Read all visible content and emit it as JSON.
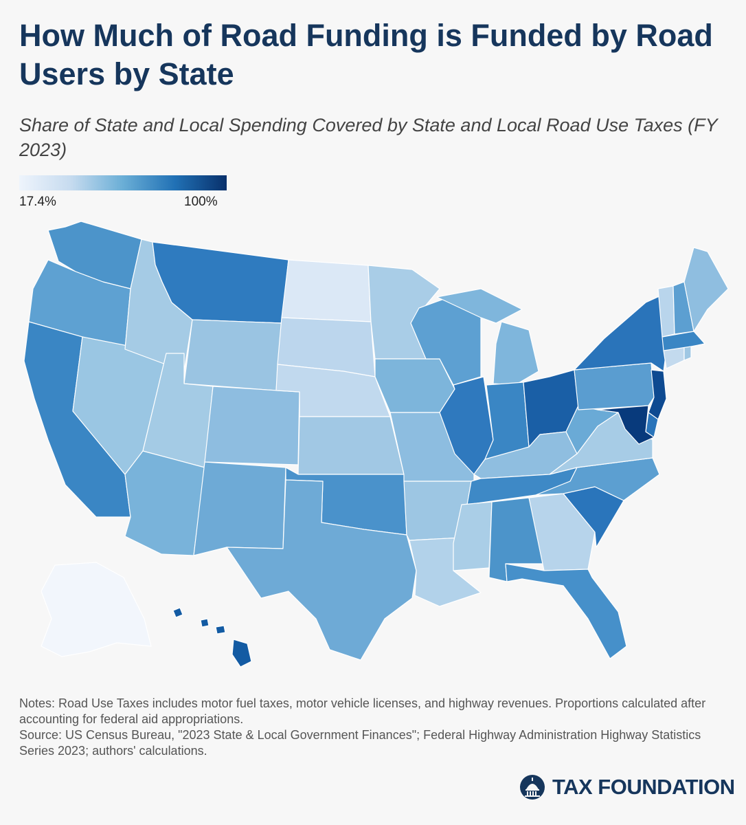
{
  "title": "How Much of Road Funding is Funded by Road Users by State",
  "subtitle": "Share of State and Local Spending Covered by State and Local Road Use Taxes (FY 2023)",
  "legend": {
    "min_label": "17.4%",
    "max_label": "100%",
    "colors": [
      "#eef4fc",
      "#c6dbef",
      "#6aaed6",
      "#2171b5",
      "#08306b"
    ]
  },
  "notes": [
    "Notes: Road Use Taxes includes motor fuel taxes, motor vehicle licenses, and highway revenues. Proportions calculated after accounting for federal aid appropriations.",
    "Source: US Census Bureau, \"2023 State & Local Government Finances\"; Federal Highway Administration Highway Statistics Series 2023; authors' calculations."
  ],
  "logo": {
    "text": "TAX FOUNDATION",
    "icon": "capitol-dome-icon"
  },
  "states": [
    {
      "id": "WA",
      "color": "#4c94ca"
    },
    {
      "id": "OR",
      "color": "#5ea1d2"
    },
    {
      "id": "CA",
      "color": "#3a86c4"
    },
    {
      "id": "NV",
      "color": "#9ac6e3"
    },
    {
      "id": "ID",
      "color": "#a5cbe5"
    },
    {
      "id": "MT",
      "color": "#2f7bbf"
    },
    {
      "id": "WY",
      "color": "#9ac4e2"
    },
    {
      "id": "UT",
      "color": "#a4cbe5"
    },
    {
      "id": "AZ",
      "color": "#79b3da"
    },
    {
      "id": "CO",
      "color": "#8ebde0"
    },
    {
      "id": "NM",
      "color": "#6eaad6"
    },
    {
      "id": "ND",
      "color": "#dbe8f6"
    },
    {
      "id": "SD",
      "color": "#bcd6ed"
    },
    {
      "id": "NE",
      "color": "#c1d9ee"
    },
    {
      "id": "KS",
      "color": "#a1c8e4"
    },
    {
      "id": "OK",
      "color": "#4a92cb"
    },
    {
      "id": "TX",
      "color": "#6eaad6"
    },
    {
      "id": "MN",
      "color": "#a9cde7"
    },
    {
      "id": "IA",
      "color": "#7db5db"
    },
    {
      "id": "MO",
      "color": "#8dbde0"
    },
    {
      "id": "AR",
      "color": "#9dc6e3"
    },
    {
      "id": "LA",
      "color": "#b2d2ea"
    },
    {
      "id": "WI",
      "color": "#5da0d2"
    },
    {
      "id": "IL",
      "color": "#2f79be"
    },
    {
      "id": "MI",
      "color": "#7fb6dc"
    },
    {
      "id": "IN",
      "color": "#3a86c4"
    },
    {
      "id": "OH",
      "color": "#1a5fa6"
    },
    {
      "id": "KY",
      "color": "#8fbee0"
    },
    {
      "id": "TN",
      "color": "#3e89c6"
    },
    {
      "id": "MS",
      "color": "#aacee7"
    },
    {
      "id": "AL",
      "color": "#4c94ca"
    },
    {
      "id": "GA",
      "color": "#b7d4eb"
    },
    {
      "id": "FL",
      "color": "#4690ca"
    },
    {
      "id": "SC",
      "color": "#2a75bb"
    },
    {
      "id": "NC",
      "color": "#5c9fd1"
    },
    {
      "id": "VA",
      "color": "#a7cce6"
    },
    {
      "id": "WV",
      "color": "#6aaad6"
    },
    {
      "id": "PA",
      "color": "#5a9dd0"
    },
    {
      "id": "NY",
      "color": "#2a74ba"
    },
    {
      "id": "NJ",
      "color": "#0e4a91"
    },
    {
      "id": "DE",
      "color": "#2a74ba"
    },
    {
      "id": "MD",
      "color": "#083a7c"
    },
    {
      "id": "CT",
      "color": "#c3daee"
    },
    {
      "id": "RI",
      "color": "#9fc7e3"
    },
    {
      "id": "MA",
      "color": "#3a86c4"
    },
    {
      "id": "VT",
      "color": "#b9d5ec"
    },
    {
      "id": "NH",
      "color": "#5c9fd1"
    },
    {
      "id": "ME",
      "color": "#8fbee0"
    },
    {
      "id": "AK",
      "color": "#f2f6fc"
    },
    {
      "id": "HI",
      "color": "#135ba3"
    }
  ]
}
